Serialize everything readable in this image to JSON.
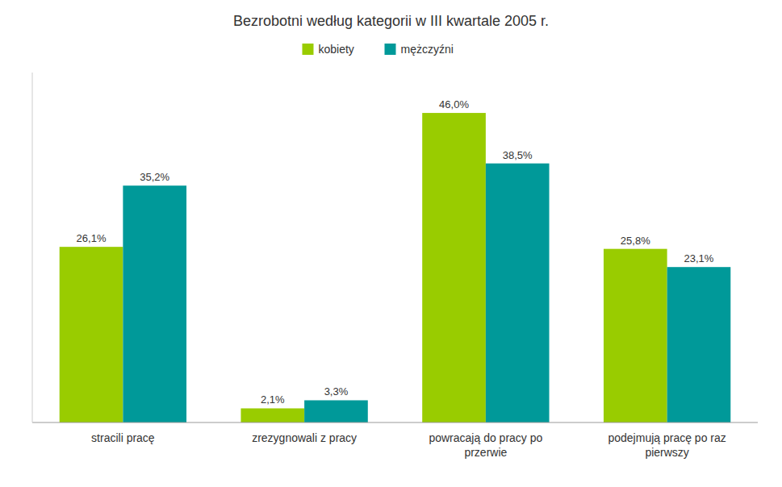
{
  "chart_data": {
    "type": "bar",
    "title": "Bezrobotni według kategorii w III kwartale 2005 r.",
    "categories": [
      "stracili pracę",
      "zrezygnowali z pracy",
      "powracają do pracy po\nprzerwie",
      "podejmują pracę po raz\npierwszy"
    ],
    "series": [
      {
        "name": "kobiety",
        "color": "#99cc00",
        "values": [
          26.1,
          2.1,
          46.0,
          25.8
        ],
        "value_labels": [
          "26,1%",
          "2,1%",
          "46,0%",
          "25,8%"
        ]
      },
      {
        "name": "mężczyźni",
        "color": "#009999",
        "values": [
          35.2,
          3.3,
          38.5,
          23.1
        ],
        "value_labels": [
          "35,2%",
          "3,3%",
          "38,5%",
          "23,1%"
        ]
      }
    ],
    "ylim": [
      0,
      52
    ],
    "grid": false,
    "legend": "top",
    "data_labels": true,
    "tick_labels": "x"
  }
}
